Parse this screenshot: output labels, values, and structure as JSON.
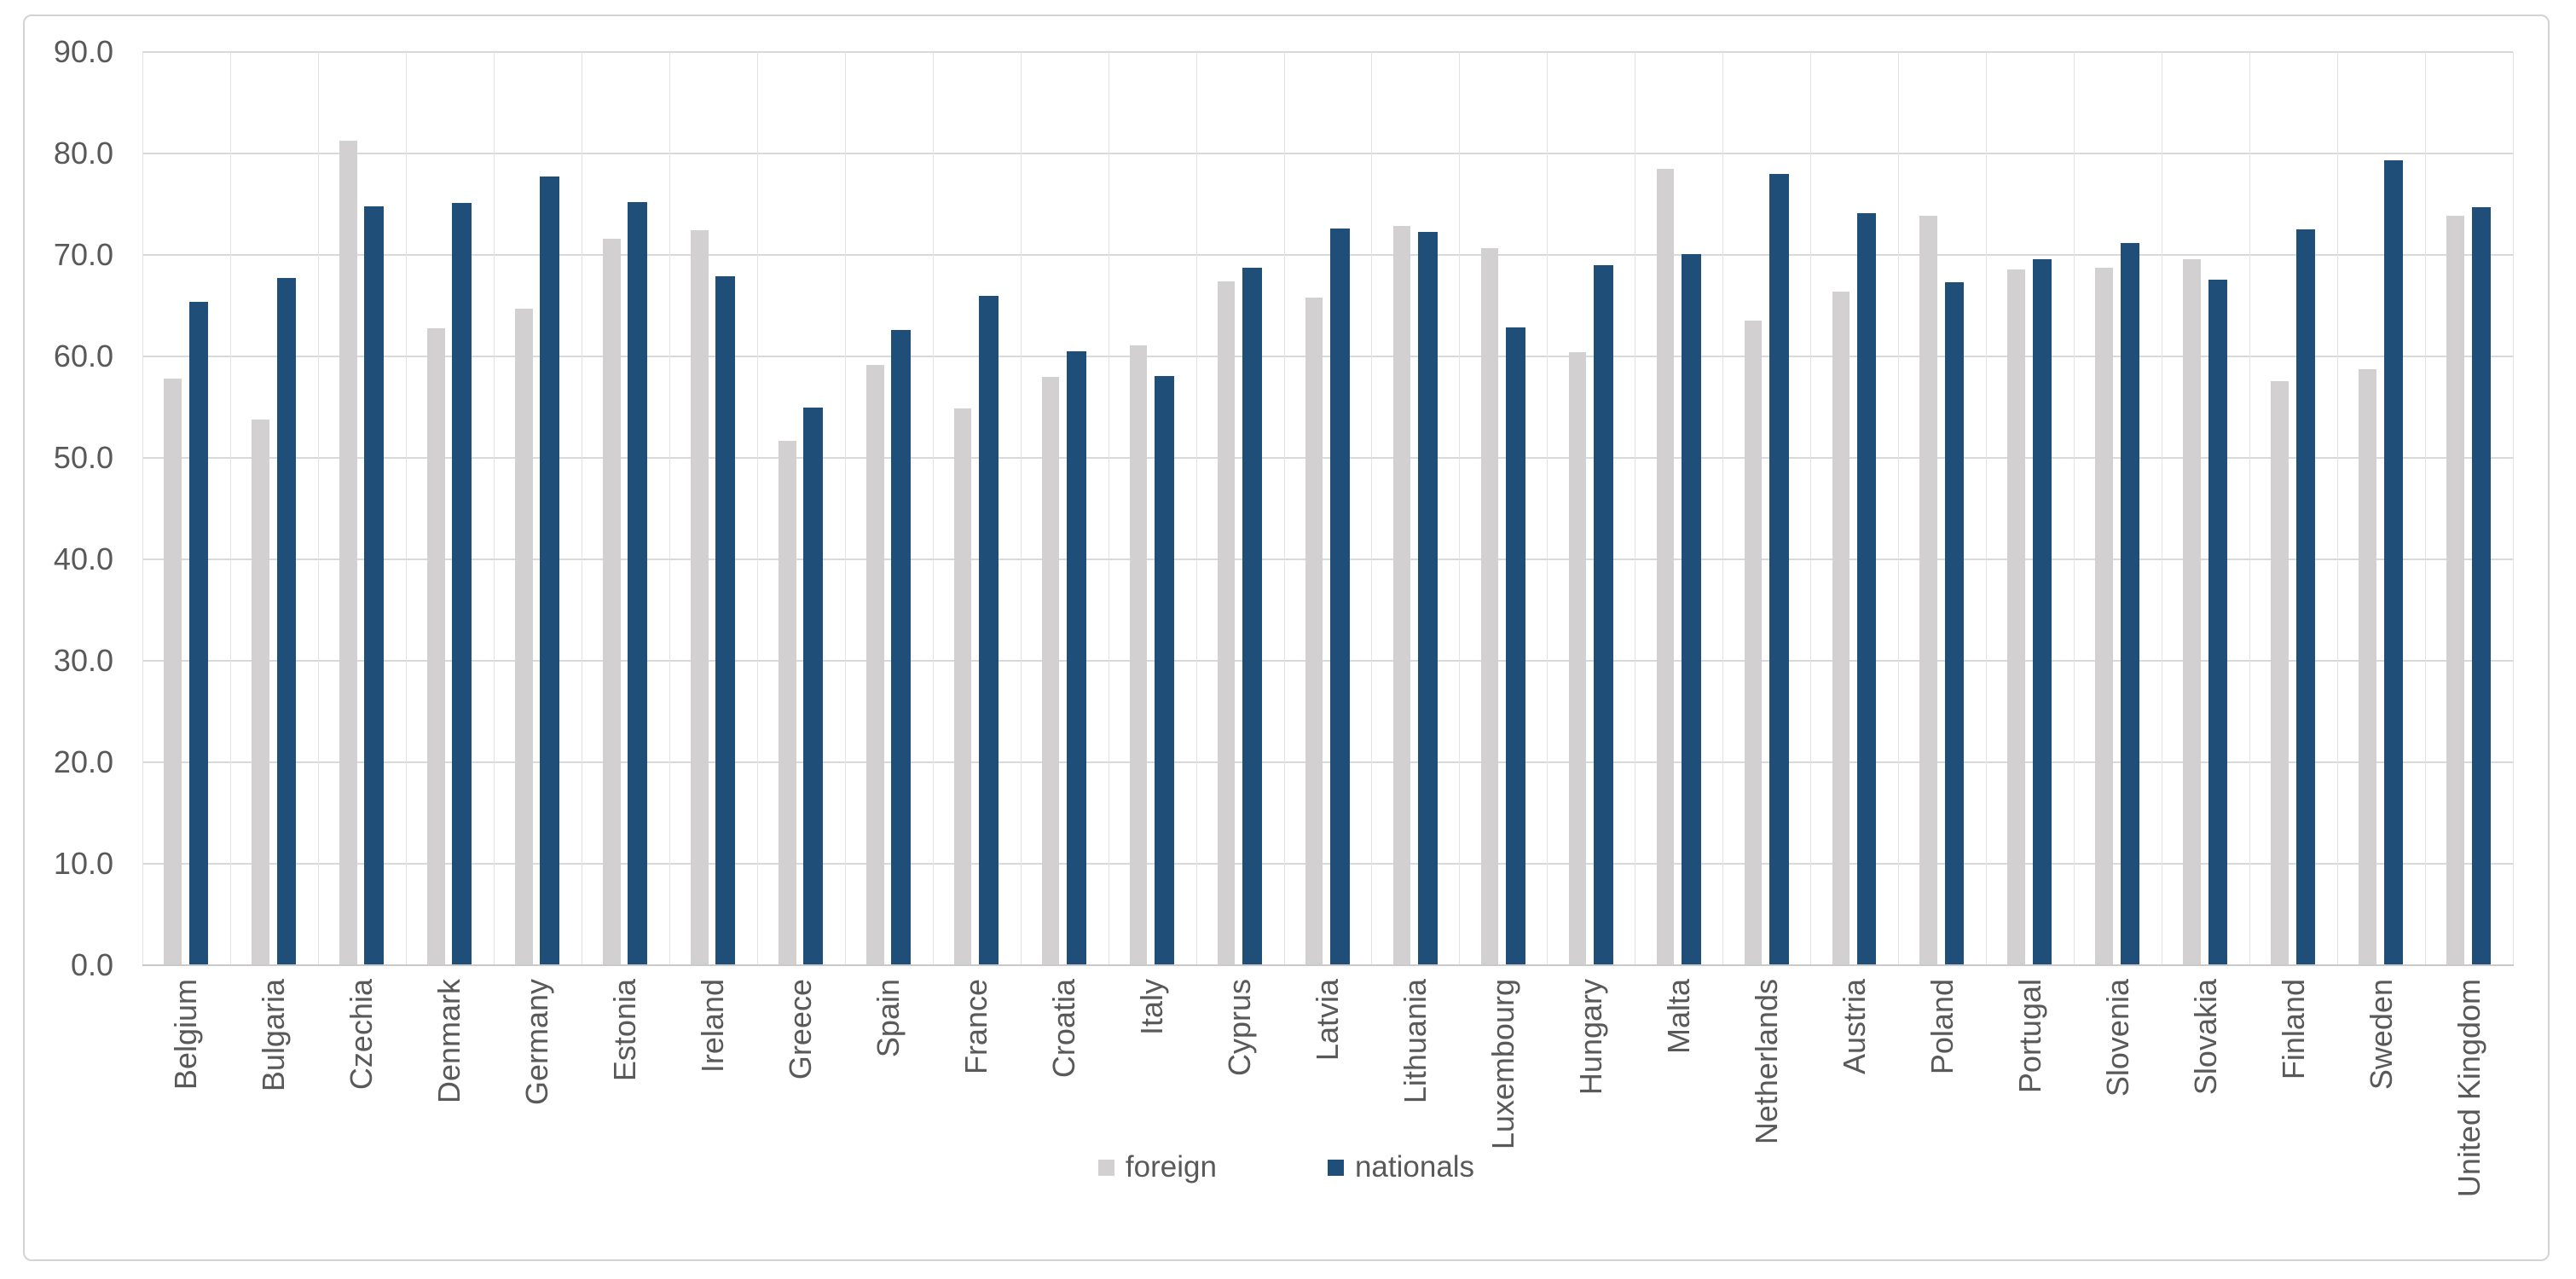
{
  "chart_data": {
    "type": "bar",
    "title": "",
    "categories": [
      "Belgium",
      "Bulgaria",
      "Czechia",
      "Denmark",
      "Germany",
      "Estonia",
      "Ireland",
      "Greece",
      "Spain",
      "France",
      "Croatia",
      "Italy",
      "Cyprus",
      "Latvia",
      "Lithuania",
      "Luxembourg",
      "Hungary",
      "Malta",
      "Netherlands",
      "Austria",
      "Poland",
      "Portugal",
      "Slovenia",
      "Slovakia",
      "Finland",
      "Sweden",
      "United Kingdom"
    ],
    "series": [
      {
        "name": "foreign",
        "color": "#d2d0d0",
        "values": [
          57.8,
          53.8,
          81.3,
          62.8,
          64.7,
          71.6,
          72.4,
          51.7,
          59.2,
          54.9,
          58.0,
          61.1,
          67.4,
          65.8,
          72.9,
          70.7,
          60.4,
          78.5,
          63.5,
          66.4,
          73.9,
          68.6,
          68.7,
          69.6,
          57.6,
          58.7,
          73.9
        ]
      },
      {
        "name": "nationals",
        "color": "#1f4e79",
        "values": [
          65.4,
          67.7,
          74.8,
          75.1,
          77.7,
          75.2,
          67.9,
          55.0,
          62.6,
          66.0,
          60.5,
          58.1,
          68.7,
          72.6,
          72.3,
          62.9,
          69.0,
          70.1,
          78.0,
          74.1,
          67.3,
          69.6,
          71.2,
          67.6,
          72.5,
          79.3,
          74.7
        ]
      }
    ],
    "xlabel": "",
    "ylabel": "",
    "ylim": [
      0,
      90
    ],
    "ytick_step": 10,
    "yticks": [
      "0.0",
      "10.0",
      "20.0",
      "30.0",
      "40.0",
      "50.0",
      "60.0",
      "70.0",
      "80.0",
      "90.0"
    ],
    "grid": true,
    "legend_position": "bottom-center",
    "gridline_color": "#d9d9d9",
    "axis_line_color": "#c9c9c9",
    "label_color": "#595959",
    "frame_border_color": "#d3d3d3"
  }
}
